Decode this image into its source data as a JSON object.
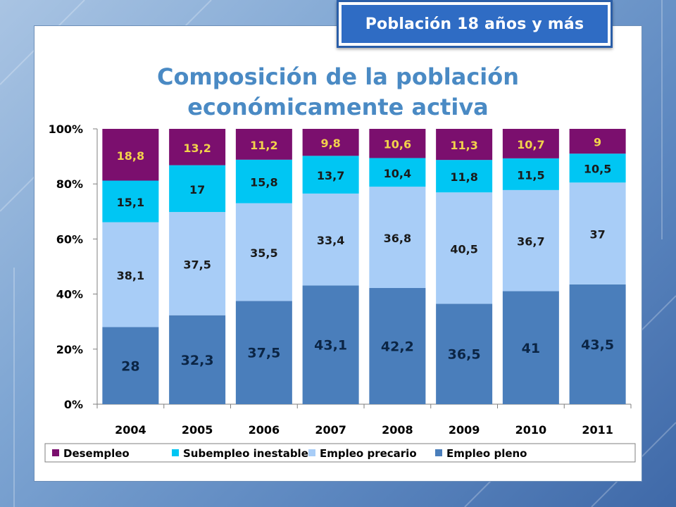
{
  "header": {
    "badge_text": "Población 18 años y más"
  },
  "colors": {
    "Desempleo": "#7b0f6e",
    "Subempleo inestable": "#00c6f3",
    "Empleo precario": "#a8cdf7",
    "Empleo pleno": "#4a7ebb"
  },
  "chart_data": {
    "type": "bar",
    "stacked": true,
    "percent_stacked": true,
    "title": [
      "Composición de la población",
      "económicamente activa"
    ],
    "categories": [
      "2004",
      "2005",
      "2006",
      "2007",
      "2008",
      "2009",
      "2010",
      "2011"
    ],
    "series": [
      {
        "name": "Empleo pleno",
        "values": [
          28,
          32.3,
          37.5,
          43.1,
          42.2,
          36.5,
          41,
          43.5
        ],
        "labels": [
          "28",
          "32,3",
          "37,5",
          "43,1",
          "42,2",
          "36,5",
          "41",
          "43,5"
        ]
      },
      {
        "name": "Empleo precario",
        "values": [
          38.1,
          37.5,
          35.5,
          33.4,
          36.8,
          40.5,
          36.7,
          37
        ],
        "labels": [
          "38,1",
          "37,5",
          "35,5",
          "33,4",
          "36,8",
          "40,5",
          "36,7",
          "37"
        ]
      },
      {
        "name": "Subempleo inestable",
        "values": [
          15.1,
          17,
          15.8,
          13.7,
          10.4,
          11.8,
          11.5,
          10.5
        ],
        "labels": [
          "15,1",
          "17",
          "15,8",
          "13,7",
          "10,4",
          "11,8",
          "11,5",
          "10,5"
        ]
      },
      {
        "name": "Desempleo",
        "values": [
          18.8,
          13.2,
          11.2,
          9.8,
          10.6,
          11.3,
          10.7,
          9
        ],
        "labels": [
          "18,8",
          "13,2",
          "11,2",
          "9,8",
          "10,6",
          "11,3",
          "10,7",
          "9"
        ]
      }
    ],
    "y_ticks": [
      "0%",
      "20%",
      "40%",
      "60%",
      "80%",
      "100%"
    ],
    "ylim": [
      0,
      100
    ],
    "grid": false,
    "legend_position": "bottom"
  }
}
